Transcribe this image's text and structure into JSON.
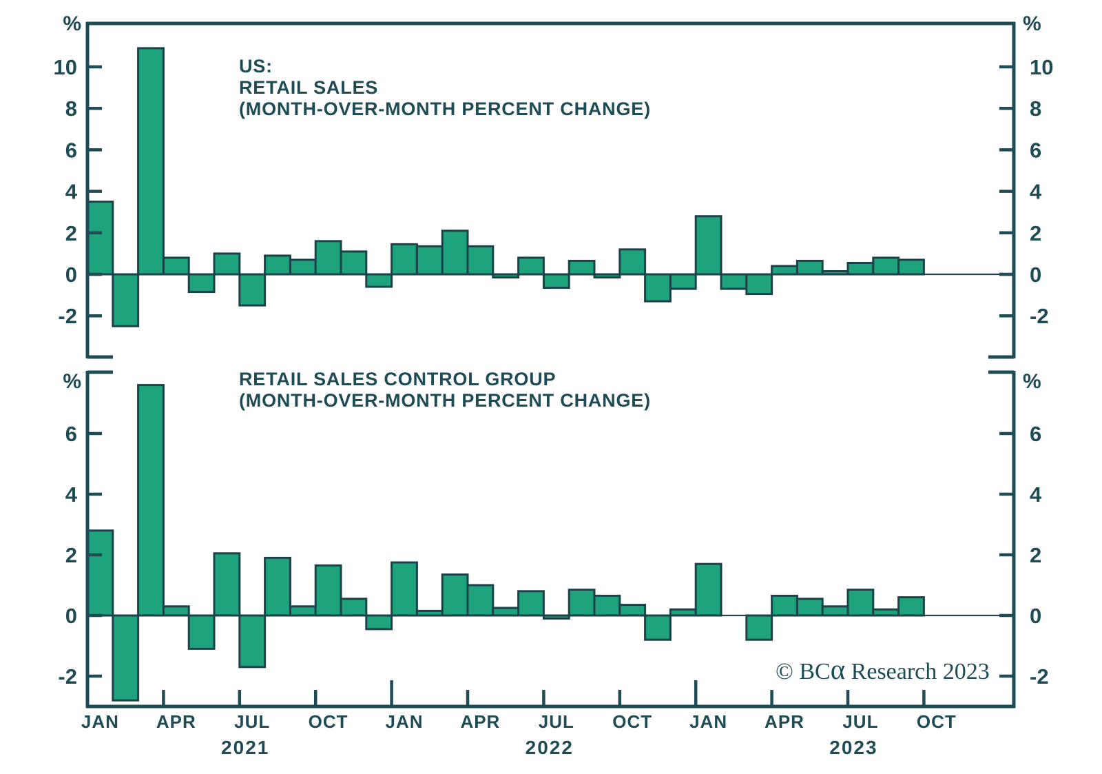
{
  "figure": {
    "background": "#ffffff",
    "colors": {
      "bar_fill": "#1fa37c",
      "bar_stroke": "#1b4249",
      "axis": "#1e4b54",
      "text": "#1e4b54",
      "zero_line": "#22454c"
    },
    "copyright": {
      "prefix": "© BC",
      "alpha": "α",
      "suffix": " Research 2023"
    }
  },
  "x_axis": {
    "tick_labels": [
      {
        "label": "JAN",
        "index": 0,
        "tall": true
      },
      {
        "label": "APR",
        "index": 3,
        "tall": false
      },
      {
        "label": "JUL",
        "index": 6,
        "tall": false
      },
      {
        "label": "OCT",
        "index": 9,
        "tall": false
      },
      {
        "label": "JAN",
        "index": 12,
        "tall": true
      },
      {
        "label": "APR",
        "index": 15,
        "tall": false
      },
      {
        "label": "JUL",
        "index": 18,
        "tall": false
      },
      {
        "label": "OCT",
        "index": 21,
        "tall": false
      },
      {
        "label": "JAN",
        "index": 24,
        "tall": true
      },
      {
        "label": "APR",
        "index": 27,
        "tall": false
      },
      {
        "label": "JUL",
        "index": 30,
        "tall": false
      },
      {
        "label": "OCT",
        "index": 33,
        "tall": false
      }
    ],
    "year_labels": [
      {
        "label": "2021",
        "index": 6
      },
      {
        "label": "2022",
        "index": 18
      },
      {
        "label": "2023",
        "index": 30
      }
    ]
  },
  "chart_data": [
    {
      "type": "bar",
      "title_lines": [
        "US:",
        "RETAIL SALES",
        "(MONTH-OVER-MONTH PERCENT CHANGE)"
      ],
      "ylabel": "%",
      "ylim": [
        -4,
        12.1
      ],
      "grid": false,
      "legend": "none",
      "y_ticks": [
        10,
        8,
        6,
        4,
        2,
        0,
        -2
      ],
      "x": [
        "Jan 2021",
        "Feb 2021",
        "Mar 2021",
        "Apr 2021",
        "May 2021",
        "Jun 2021",
        "Jul 2021",
        "Aug 2021",
        "Sep 2021",
        "Oct 2021",
        "Nov 2021",
        "Dec 2021",
        "Jan 2022",
        "Feb 2022",
        "Mar 2022",
        "Apr 2022",
        "May 2022",
        "Jun 2022",
        "Jul 2022",
        "Aug 2022",
        "Sep 2022",
        "Oct 2022",
        "Nov 2022",
        "Dec 2022",
        "Jan 2023",
        "Feb 2023",
        "Mar 2023",
        "Apr 2023",
        "May 2023",
        "Jun 2023",
        "Jul 2023",
        "Aug 2023",
        "Sep 2023"
      ],
      "values": [
        3.5,
        -2.5,
        10.9,
        0.8,
        -0.85,
        1.0,
        -1.5,
        0.9,
        0.7,
        1.6,
        1.1,
        -0.6,
        1.45,
        1.35,
        2.1,
        1.35,
        -0.15,
        0.8,
        -0.65,
        0.65,
        -0.15,
        1.2,
        -1.3,
        -0.7,
        2.8,
        -0.7,
        -0.95,
        0.4,
        0.65,
        0.15,
        0.55,
        0.8,
        0.7
      ]
    },
    {
      "type": "bar",
      "title_lines": [
        "RETAIL SALES CONTROL GROUP",
        "(MONTH-OVER-MONTH PERCENT CHANGE)"
      ],
      "ylabel": "%",
      "ylim": [
        -3,
        8
      ],
      "grid": false,
      "legend": "none",
      "y_ticks": [
        6,
        4,
        2,
        0,
        -2
      ],
      "x": [
        "Jan 2021",
        "Feb 2021",
        "Mar 2021",
        "Apr 2021",
        "May 2021",
        "Jun 2021",
        "Jul 2021",
        "Aug 2021",
        "Sep 2021",
        "Oct 2021",
        "Nov 2021",
        "Dec 2021",
        "Jan 2022",
        "Feb 2022",
        "Mar 2022",
        "Apr 2022",
        "May 2022",
        "Jun 2022",
        "Jul 2022",
        "Aug 2022",
        "Sep 2022",
        "Oct 2022",
        "Nov 2022",
        "Dec 2022",
        "Jan 2023",
        "Feb 2023",
        "Mar 2023",
        "Apr 2023",
        "May 2023",
        "Jun 2023",
        "Jul 2023",
        "Aug 2023",
        "Sep 2023"
      ],
      "values": [
        2.8,
        -2.8,
        7.6,
        0.3,
        -1.1,
        2.05,
        -1.7,
        1.9,
        0.3,
        1.65,
        0.55,
        -0.45,
        1.75,
        0.15,
        1.35,
        1.0,
        0.25,
        0.8,
        -0.1,
        0.85,
        0.65,
        0.35,
        -0.8,
        0.2,
        1.7,
        0.0,
        -0.8,
        0.65,
        0.55,
        0.3,
        0.85,
        0.2,
        0.6
      ]
    }
  ]
}
